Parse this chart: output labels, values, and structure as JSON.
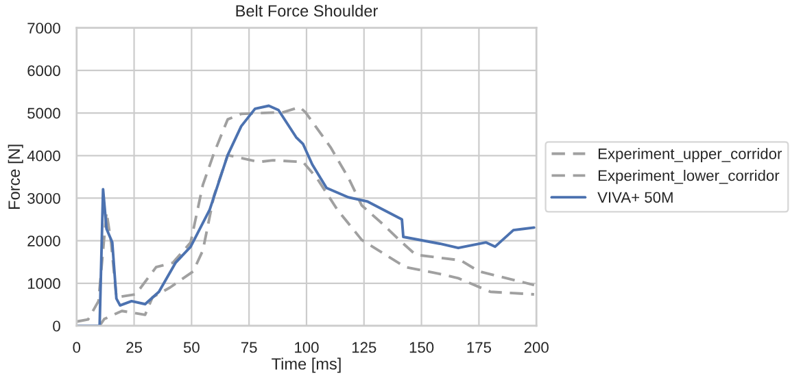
{
  "chart_data": {
    "type": "line",
    "title": "Belt Force Shoulder",
    "xlabel": "Time [ms]",
    "ylabel": "Force [N]",
    "xlim": [
      0,
      200
    ],
    "ylim": [
      0,
      7000
    ],
    "xticks": [
      0,
      25,
      50,
      75,
      100,
      125,
      150,
      175,
      200
    ],
    "yticks": [
      0,
      1000,
      2000,
      3000,
      4000,
      5000,
      6000,
      7000
    ],
    "grid": true,
    "legend": "right",
    "marker": "none",
    "series": [
      {
        "name": "Experiment_upper_corridor",
        "color": "#a0a0a0",
        "line_style": "dashed",
        "x": [
          0,
          5,
          9.5,
          13,
          15,
          17.3,
          25.7,
          34.6,
          41.8,
          49.6,
          54.9,
          59.7,
          65.7,
          71.6,
          80,
          90,
          97,
          99.5,
          110.4,
          118.3,
          124,
          133,
          141.5,
          147.5,
          167,
          175,
          199
        ],
        "values": [
          100,
          150,
          580,
          2670,
          1960,
          670,
          740,
          1380,
          1480,
          1960,
          3310,
          4050,
          4850,
          4980,
          5000,
          5020,
          5140,
          5020,
          4200,
          3470,
          2830,
          2400,
          1960,
          1670,
          1540,
          1280,
          960
        ]
      },
      {
        "name": "Experiment_lower_corridor",
        "color": "#a0a0a0",
        "line_style": "dashed",
        "x": [
          0,
          10,
          12,
          19.7,
          29.8,
          33,
          40.6,
          50.7,
          54.9,
          59.7,
          65.7,
          79.4,
          85.4,
          98.5,
          104.5,
          113.4,
          124,
          143,
          158,
          166,
          180,
          199
        ],
        "values": [
          0,
          0,
          160,
          350,
          260,
          670,
          900,
          1280,
          1770,
          3050,
          4010,
          3850,
          3890,
          3850,
          3470,
          2730,
          2020,
          1380,
          1220,
          1120,
          800,
          740
        ]
      },
      {
        "name": "VIVA+ 50M",
        "color": "#4c72b0",
        "line_style": "solid",
        "x": [
          0,
          10,
          11.5,
          13,
          15.5,
          17.3,
          18.9,
          23.9,
          29.8,
          35.8,
          43,
          49.6,
          57.9,
          65.7,
          71.6,
          77.6,
          83.6,
          87.8,
          95.5,
          98.5,
          102.5,
          108.7,
          118.2,
          126.6,
          141.5,
          142.1,
          158,
          166,
          178,
          182,
          190,
          199
        ],
        "values": [
          0,
          0,
          3210,
          2280,
          1960,
          640,
          480,
          580,
          510,
          800,
          1480,
          1860,
          2730,
          4010,
          4690,
          5100,
          5170,
          5070,
          4430,
          4270,
          3790,
          3240,
          3020,
          2920,
          2500,
          2090,
          1930,
          1830,
          1960,
          1860,
          2250,
          2310
        ]
      }
    ]
  }
}
